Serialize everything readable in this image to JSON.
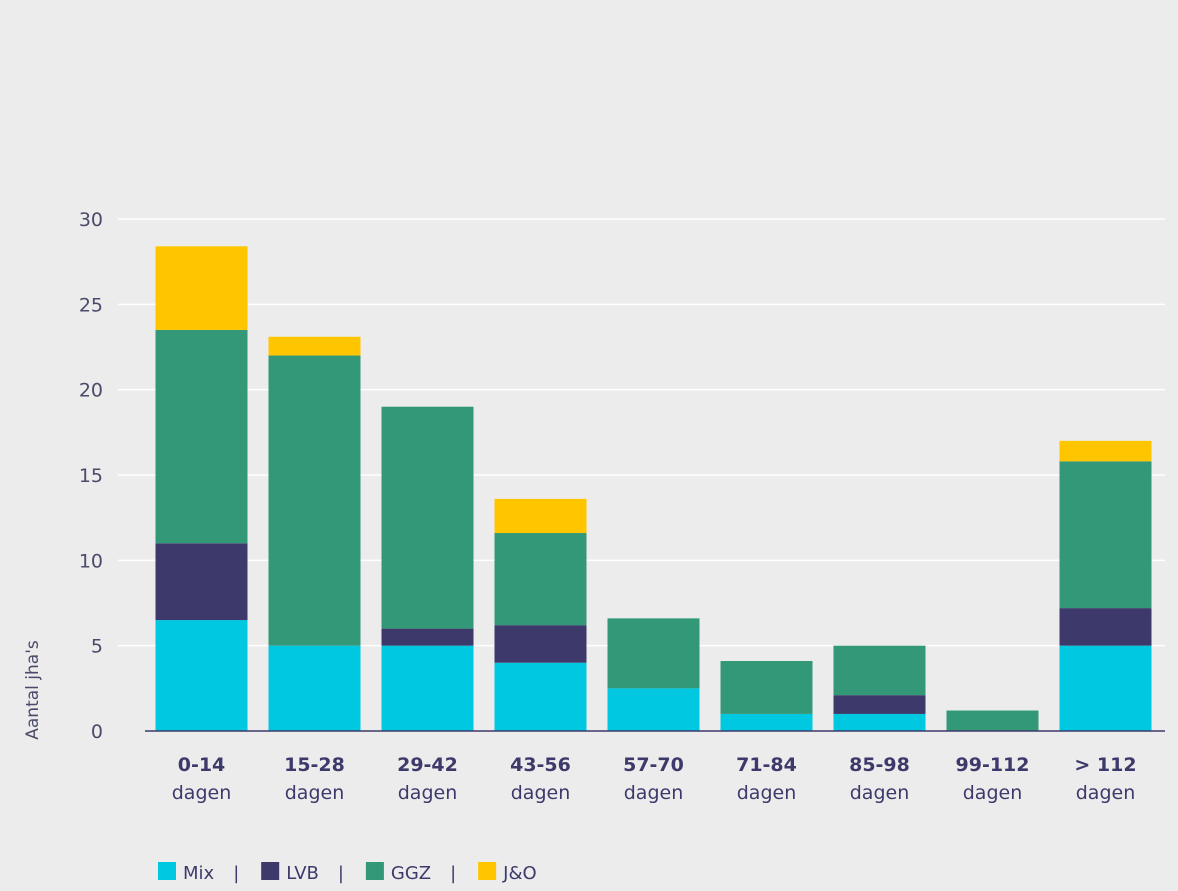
{
  "chart_data": {
    "type": "bar",
    "stacked": true,
    "ylabel": "Aantal jha's",
    "ylim": [
      0,
      30
    ],
    "yticks": [
      0,
      5,
      10,
      15,
      20,
      25,
      30
    ],
    "grid": true,
    "legend_placement": "bottom-left",
    "categories": [
      {
        "range": "0-14",
        "unit": "dagen"
      },
      {
        "range": "15-28",
        "unit": "dagen"
      },
      {
        "range": "29-42",
        "unit": "dagen"
      },
      {
        "range": "43-56",
        "unit": "dagen"
      },
      {
        "range": "57-70",
        "unit": "dagen"
      },
      {
        "range": "71-84",
        "unit": "dagen"
      },
      {
        "range": "85-98",
        "unit": "dagen"
      },
      {
        "range": "99-112",
        "unit": "dagen"
      },
      {
        "range": "> 112",
        "unit": "dagen"
      }
    ],
    "series": [
      {
        "name": "Mix",
        "color": "#00c8e0",
        "values": [
          6.5,
          5,
          5,
          4,
          2.5,
          1,
          1,
          0,
          5
        ]
      },
      {
        "name": "LVB",
        "color": "#3d3a6b",
        "values": [
          4.5,
          0,
          1,
          2.2,
          0,
          0,
          1.1,
          0,
          2.2
        ]
      },
      {
        "name": "GGZ",
        "color": "#329877",
        "values": [
          12.5,
          17,
          13,
          5.4,
          4.1,
          3.1,
          2.9,
          1.2,
          8.6
        ]
      },
      {
        "name": "J&O",
        "color": "#ffc600",
        "values": [
          4.9,
          1.1,
          0,
          2,
          0,
          0,
          0,
          0,
          1.2
        ]
      }
    ],
    "legend_separator": "|"
  }
}
